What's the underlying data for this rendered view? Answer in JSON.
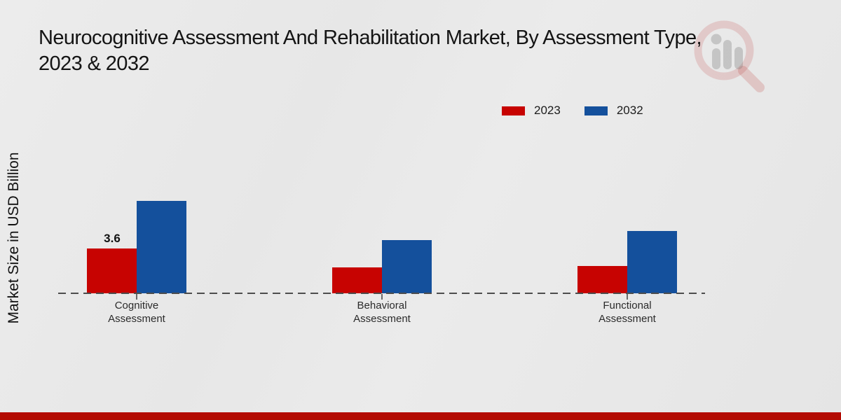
{
  "title": "Neurocognitive Assessment And Rehabilitation Market, By Assessment Type,\n2023 & 2032",
  "y_axis_label": "Market Size in USD Billion",
  "legend": {
    "items": [
      {
        "label": "2023",
        "color": "#c70301"
      },
      {
        "label": "2032",
        "color": "#14509c"
      }
    ]
  },
  "watermark": {
    "icon": "magnifier-bar-chart-logo-icon"
  },
  "colors": {
    "series_2023": "#c70301",
    "series_2032": "#14509c",
    "footer_bar": "#b30b02",
    "baseline": "#4d4d4d"
  },
  "chart_data": {
    "type": "bar",
    "title": "Neurocognitive Assessment And Rehabilitation Market, By Assessment Type, 2023 & 2032",
    "xlabel": "",
    "ylabel": "Market Size in USD Billion",
    "categories": [
      "Cognitive Assessment",
      "Behavioral Assessment",
      "Functional Assessment"
    ],
    "series": [
      {
        "name": "2023",
        "color": "#c70301",
        "values": [
          3.6,
          2.1,
          2.2
        ],
        "value_labels": [
          "3.6",
          "",
          ""
        ]
      },
      {
        "name": "2032",
        "color": "#14509c",
        "values": [
          7.4,
          4.3,
          5.0
        ],
        "value_labels": [
          "",
          "",
          ""
        ]
      }
    ],
    "ylim": [
      0,
      8
    ],
    "grid": false,
    "y_ticks_shown": false,
    "baseline_style": "dashed",
    "legend_position": "top-right"
  }
}
